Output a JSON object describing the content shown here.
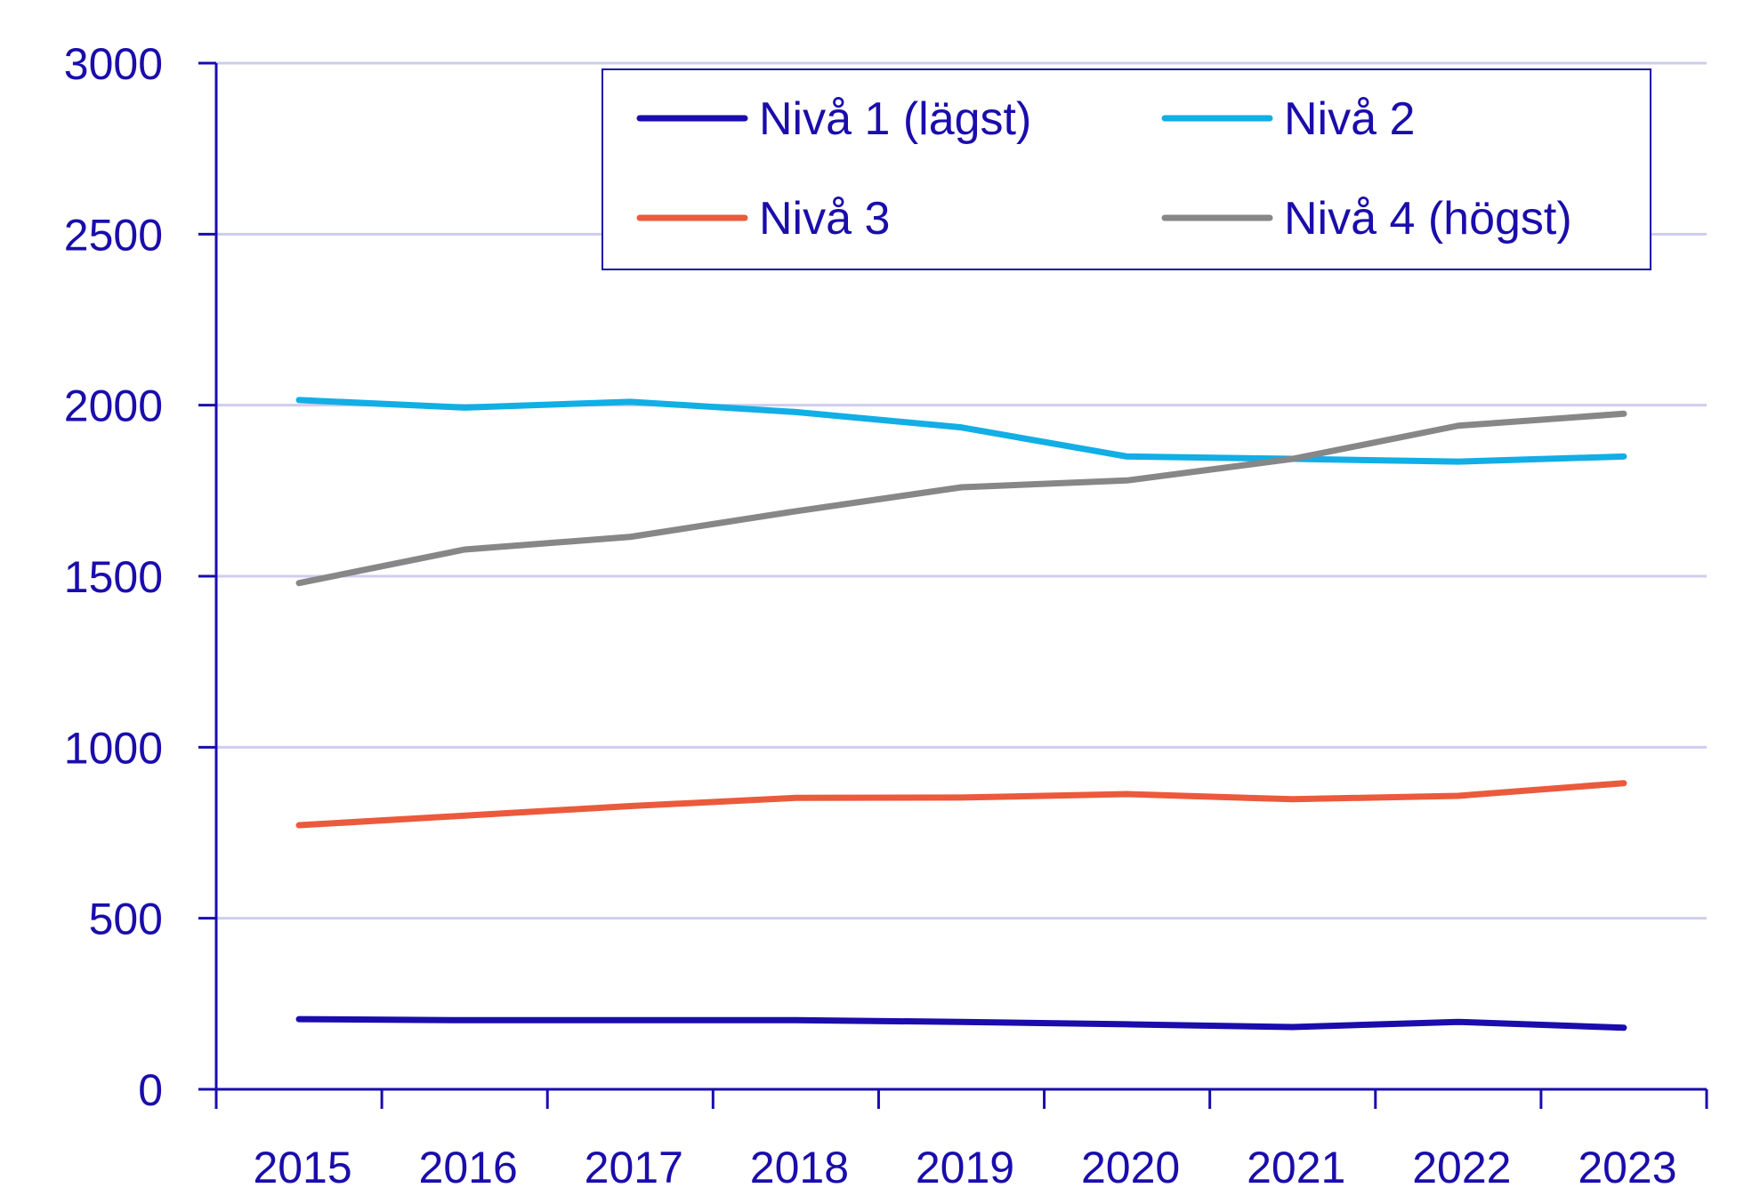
{
  "chart_data": {
    "type": "line",
    "title": "",
    "xlabel": "",
    "ylabel": "",
    "categories": [
      "2015",
      "2016",
      "2017",
      "2018",
      "2019",
      "2020",
      "2021",
      "2022",
      "2023"
    ],
    "ylim": [
      0,
      3000
    ],
    "yticks": [
      "0",
      "500",
      "1000",
      "1500",
      "2000",
      "2500",
      "3000"
    ],
    "grid": "horizontal",
    "legend_position": "top-right",
    "series": [
      {
        "name": "Nivå 1 (lägst)",
        "color": "#1a0dab",
        "values": [
          205,
          202,
          202,
          202,
          197,
          190,
          182,
          197,
          180
        ]
      },
      {
        "name": "Nivå 2",
        "color": "#12aee6",
        "values": [
          2015,
          1993,
          2010,
          1980,
          1935,
          1850,
          1843,
          1835,
          1850
        ]
      },
      {
        "name": "Nivå 3",
        "color": "#eb5a3c",
        "values": [
          772,
          800,
          828,
          852,
          853,
          863,
          848,
          858,
          895
        ]
      },
      {
        "name": "Nivå 4 (högst)",
        "color": "#878787",
        "values": [
          1480,
          1578,
          1615,
          1690,
          1760,
          1780,
          1843,
          1940,
          1975
        ]
      }
    ],
    "colors": {
      "axis": "#1a0dab",
      "text": "#1a0dab",
      "grid": "#cfcdee"
    }
  }
}
